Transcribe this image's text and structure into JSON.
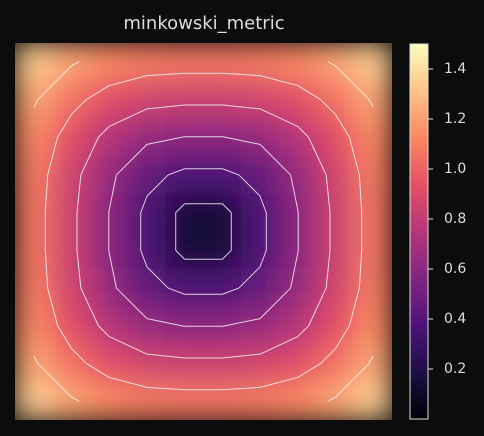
{
  "chart_data": {
    "type": "heatmap",
    "title": "minkowski_metric",
    "z": [
      [
        1.349,
        1.218,
        1.129,
        1.084,
        1.072,
        1.072,
        1.084,
        1.129,
        1.218,
        1.349
      ],
      [
        1.218,
        1.049,
        0.924,
        0.854,
        0.834,
        0.834,
        0.854,
        0.924,
        1.049,
        1.218
      ],
      [
        1.129,
        0.924,
        0.75,
        0.635,
        0.597,
        0.597,
        0.635,
        0.75,
        0.924,
        1.129
      ],
      [
        1.084,
        0.854,
        0.635,
        0.45,
        0.361,
        0.361,
        0.45,
        0.635,
        0.854,
        1.084
      ],
      [
        1.072,
        0.834,
        0.597,
        0.361,
        0.15,
        0.15,
        0.361,
        0.597,
        0.834,
        1.072
      ],
      [
        1.072,
        0.834,
        0.597,
        0.361,
        0.15,
        0.15,
        0.361,
        0.597,
        0.834,
        1.072
      ],
      [
        1.084,
        0.854,
        0.635,
        0.45,
        0.361,
        0.361,
        0.45,
        0.635,
        0.854,
        1.084
      ],
      [
        1.129,
        0.924,
        0.75,
        0.635,
        0.597,
        0.597,
        0.635,
        0.75,
        0.924,
        1.129
      ],
      [
        1.218,
        1.049,
        0.924,
        0.854,
        0.834,
        0.834,
        0.854,
        0.924,
        1.049,
        1.218
      ],
      [
        1.349,
        1.218,
        1.129,
        1.084,
        1.072,
        1.072,
        1.084,
        1.129,
        1.218,
        1.349
      ]
    ],
    "clim": [
      0,
      1.5
    ],
    "colorbar_ticks": [
      0.2,
      0.4,
      0.6,
      0.8,
      1.0,
      1.2,
      1.4
    ],
    "levels": [
      0.2,
      0.4,
      0.6,
      0.8,
      1.0,
      1.2,
      1.4
    ],
    "colormap": [
      "#000004",
      "#1c1044",
      "#4f127b",
      "#812581",
      "#b5367a",
      "#e55064",
      "#fb8761",
      "#fec287",
      "#fcfdbf"
    ],
    "contour_color": "#f4f4f4"
  }
}
